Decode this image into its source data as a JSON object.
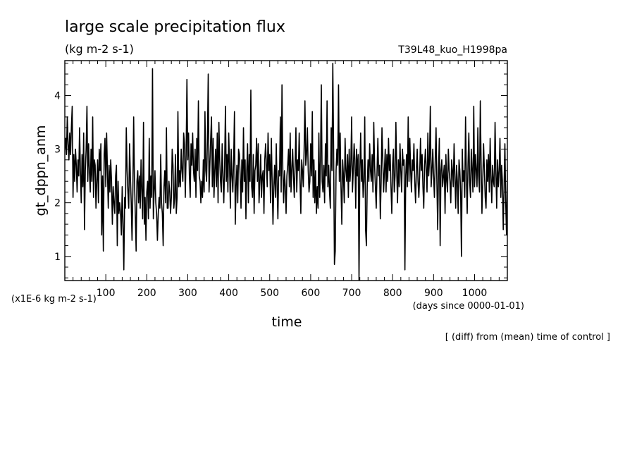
{
  "chart_data": {
    "type": "line",
    "title": "large scale precipitation flux",
    "units": "(kg m-2 s-1)",
    "experiment": "T39L48_kuo_H1998pa",
    "xlabel": "time",
    "x_units": "(days since 0000-01-01)",
    "ylabel": "gt_dppn_anm",
    "y_scale_note": "(x1E-6 kg m-2 s-1)",
    "footnote": "[ (diff) from (mean) time of control ]",
    "xlim": [
      0,
      1080
    ],
    "ylim": [
      0.55,
      4.65
    ],
    "grid": false,
    "x_ticks": [
      100,
      200,
      300,
      400,
      500,
      600,
      700,
      800,
      900,
      1000
    ],
    "y_ticks": [
      1,
      2,
      3,
      4
    ],
    "series": [
      {
        "x_start": 0,
        "x_step": 2,
        "values": [
          3.0,
          3.2,
          2.9,
          3.6,
          3.1,
          2.8,
          3.3,
          2.9,
          3.4,
          3.8,
          2.1,
          2.9,
          2.4,
          3.0,
          2.7,
          2.2,
          2.8,
          2.5,
          3.4,
          2.6,
          2.0,
          2.9,
          2.3,
          3.3,
          1.5,
          2.6,
          3.0,
          3.8,
          2.4,
          3.1,
          2.6,
          2.2,
          3.0,
          2.4,
          3.6,
          2.1,
          2.8,
          2.7,
          1.9,
          2.4,
          2.8,
          2.0,
          3.0,
          2.6,
          3.1,
          1.4,
          2.5,
          1.1,
          2.9,
          3.2,
          2.3,
          3.3,
          2.6,
          1.9,
          2.7,
          2.2,
          2.8,
          2.4,
          1.6,
          2.3,
          2.0,
          1.8,
          2.5,
          2.7,
          1.2,
          2.4,
          1.8,
          2.0,
          1.8,
          1.4,
          2.3,
          1.6,
          0.75,
          2.1,
          1.9,
          3.4,
          2.6,
          2.2,
          1.9,
          3.1,
          2.5,
          2.0,
          1.3,
          2.2,
          3.6,
          2.4,
          1.8,
          1.1,
          2.4,
          2.6,
          2.0,
          2.5,
          1.9,
          2.8,
          2.2,
          1.7,
          3.5,
          1.6,
          2.1,
          1.3,
          2.2,
          2.4,
          1.7,
          3.2,
          1.9,
          2.5,
          2.1,
          4.5,
          1.7,
          2.2,
          2.6,
          2.0,
          1.8,
          1.3,
          1.8,
          2.1,
          1.9,
          2.9,
          2.0,
          1.8,
          1.2,
          2.3,
          2.6,
          2.0,
          3.4,
          1.9,
          1.9,
          2.4,
          2.2,
          1.8,
          2.1,
          3.0,
          2.7,
          1.9,
          2.1,
          2.9,
          1.8,
          2.1,
          3.7,
          2.3,
          2.6,
          2.3,
          3.0,
          2.6,
          2.4,
          3.3,
          3.1,
          2.1,
          2.9,
          4.3,
          2.8,
          3.3,
          2.5,
          2.1,
          3.1,
          2.7,
          3.3,
          2.6,
          2.4,
          3.0,
          2.1,
          3.2,
          2.6,
          3.9,
          2.5,
          2.4,
          2.0,
          2.4,
          2.1,
          2.8,
          2.2,
          3.7,
          2.6,
          2.4,
          3.2,
          4.4,
          2.2,
          2.7,
          3.2,
          3.6,
          2.3,
          3.2,
          2.1,
          2.6,
          3.0,
          2.3,
          3.3,
          2.0,
          3.5,
          2.8,
          2.4,
          2.2,
          3.1,
          2.5,
          2.0,
          2.7,
          3.8,
          2.4,
          2.9,
          2.2,
          3.3,
          2.7,
          1.9,
          3.0,
          2.5,
          2.2,
          2.8,
          3.7,
          1.6,
          2.3,
          2.7,
          2.0,
          3.0,
          2.9,
          2.5,
          1.9,
          2.8,
          2.2,
          3.4,
          2.4,
          2.8,
          1.7,
          2.6,
          3.1,
          2.0,
          2.9,
          2.4,
          4.1,
          2.3,
          2.1,
          2.9,
          1.8,
          2.6,
          2.7,
          3.2,
          2.4,
          3.1,
          2.0,
          2.4,
          2.9,
          2.1,
          2.5,
          2.6,
          1.8,
          2.8,
          3.1,
          2.7,
          2.3,
          3.3,
          2.6,
          2.9,
          2.0,
          3.2,
          2.4,
          1.6,
          2.3,
          2.7,
          2.1,
          3.1,
          2.3,
          1.7,
          2.6,
          2.5,
          3.6,
          2.2,
          4.2,
          2.6,
          2.0,
          2.6,
          2.3,
          1.8,
          2.5,
          2.7,
          3.0,
          2.3,
          3.3,
          2.2,
          2.6,
          3.0,
          2.5,
          2.1,
          2.7,
          3.4,
          2.2,
          2.8,
          2.6,
          3.3,
          2.4,
          1.8,
          2.8,
          2.6,
          2.3,
          3.0,
          3.9,
          2.7,
          2.9,
          3.4,
          2.6,
          2.2,
          2.4,
          3.1,
          2.5,
          3.7,
          2.1,
          2.8,
          2.0,
          2.6,
          1.8,
          2.3,
          1.9,
          3.3,
          2.1,
          2.8,
          4.2,
          2.4,
          2.2,
          2.7,
          2.0,
          3.1,
          2.5,
          3.9,
          2.3,
          2.7,
          2.2,
          1.9,
          3.4,
          2.6,
          4.6,
          3.0,
          0.85,
          1.1,
          2.6,
          3.0,
          2.7,
          4.2,
          2.4,
          3.3,
          2.3,
          1.6,
          2.8,
          2.5,
          2.0,
          3.2,
          2.6,
          2.4,
          2.9,
          2.1,
          3.0,
          2.4,
          2.7,
          3.6,
          2.2,
          2.6,
          3.1,
          2.8,
          1.9,
          3.0,
          2.5,
          2.9,
          0.55,
          2.6,
          3.3,
          2.4,
          2.8,
          2.1,
          2.4,
          3.6,
          1.5,
          1.2,
          2.3,
          2.8,
          2.4,
          3.1,
          2.6,
          2.4,
          2.9,
          2.2,
          3.5,
          2.7,
          2.3,
          1.9,
          2.6,
          3.2,
          2.5,
          2.7,
          1.7,
          2.4,
          3.4,
          2.8,
          2.2,
          2.6,
          3.0,
          2.2,
          2.9,
          2.4,
          3.2,
          2.6,
          2.9,
          2.3,
          1.8,
          2.7,
          3.0,
          2.2,
          2.5,
          3.5,
          2.6,
          2.0,
          2.8,
          2.3,
          3.1,
          2.6,
          2.2,
          3.0,
          2.7,
          2.8,
          0.75,
          2.5,
          2.9,
          2.3,
          3.6,
          2.4,
          3.2,
          2.6,
          2.2,
          2.8,
          2.6,
          3.1,
          2.4,
          2.0,
          2.6,
          3.0,
          2.4,
          2.1,
          2.5,
          3.2,
          2.6,
          2.9,
          2.3,
          1.9,
          2.7,
          3.0,
          2.6,
          2.2,
          3.3,
          2.5,
          2.8,
          3.8,
          2.3,
          2.6,
          3.0,
          2.5,
          2.1,
          2.8,
          3.4,
          2.4,
          1.5,
          2.6,
          3.2,
          1.2,
          2.6,
          2.8,
          2.3,
          2.5,
          2.7,
          1.8,
          2.9,
          2.4,
          2.2,
          3.0,
          2.6,
          2.4,
          2.0,
          2.8,
          2.6,
          2.3,
          3.1,
          2.5,
          1.9,
          2.7,
          2.4,
          1.8,
          2.8,
          2.6,
          2.2,
          1.0,
          3.0,
          2.4,
          2.6,
          2.1,
          3.6,
          2.5,
          1.8,
          2.7,
          3.3,
          2.4,
          2.1,
          3.0,
          2.6,
          2.2,
          3.8,
          2.3,
          2.9,
          2.6,
          2.3,
          3.4,
          2.5,
          2.2,
          3.9,
          2.7,
          1.8,
          2.4,
          3.1,
          2.6,
          2.1,
          1.9,
          2.8,
          2.4,
          2.9,
          2.2,
          3.2,
          2.5,
          2.0,
          2.7,
          2.4,
          2.3,
          3.5,
          2.6,
          1.9,
          2.8,
          2.3,
          2.6,
          3.2,
          2.1,
          2.7,
          2.4,
          1.5,
          2.3,
          3.1,
          2.0,
          1.4,
          2.6,
          3.3,
          2.8,
          1.6,
          2.4,
          3.6,
          2.7,
          2.2,
          3.0,
          2.4,
          2.8,
          1.3,
          2.5,
          3.7,
          2.3,
          3.0,
          2.6,
          2.3,
          3.4
        ]
      }
    ]
  }
}
